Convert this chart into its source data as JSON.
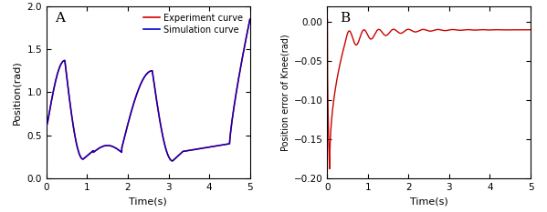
{
  "panel_A": {
    "label": "A",
    "xlabel": "Time(s)",
    "ylabel": "Position(rad)",
    "xlim": [
      0,
      5
    ],
    "ylim": [
      0.0,
      2.0
    ],
    "yticks": [
      0.0,
      0.5,
      1.0,
      1.5,
      2.0
    ],
    "xticks": [
      0,
      1,
      2,
      3,
      4,
      5
    ],
    "legend": [
      {
        "label": "Experiment curve",
        "color": "#cc0000"
      },
      {
        "label": "Simulation curve",
        "color": "#0000cc"
      }
    ]
  },
  "panel_B": {
    "label": "B",
    "xlabel": "Time(s)",
    "ylabel": "Position error of Knee(rad)",
    "xlim": [
      0,
      5
    ],
    "ylim": [
      -0.2,
      0.02
    ],
    "yticks": [
      0.0,
      -0.05,
      -0.1,
      -0.15,
      -0.2
    ],
    "xticks": [
      0,
      1,
      2,
      3,
      4,
      5
    ],
    "line_color": "#cc0000"
  },
  "background_color": "#ffffff",
  "exp_color": "#cc0000",
  "sim_color": "#0000cc"
}
